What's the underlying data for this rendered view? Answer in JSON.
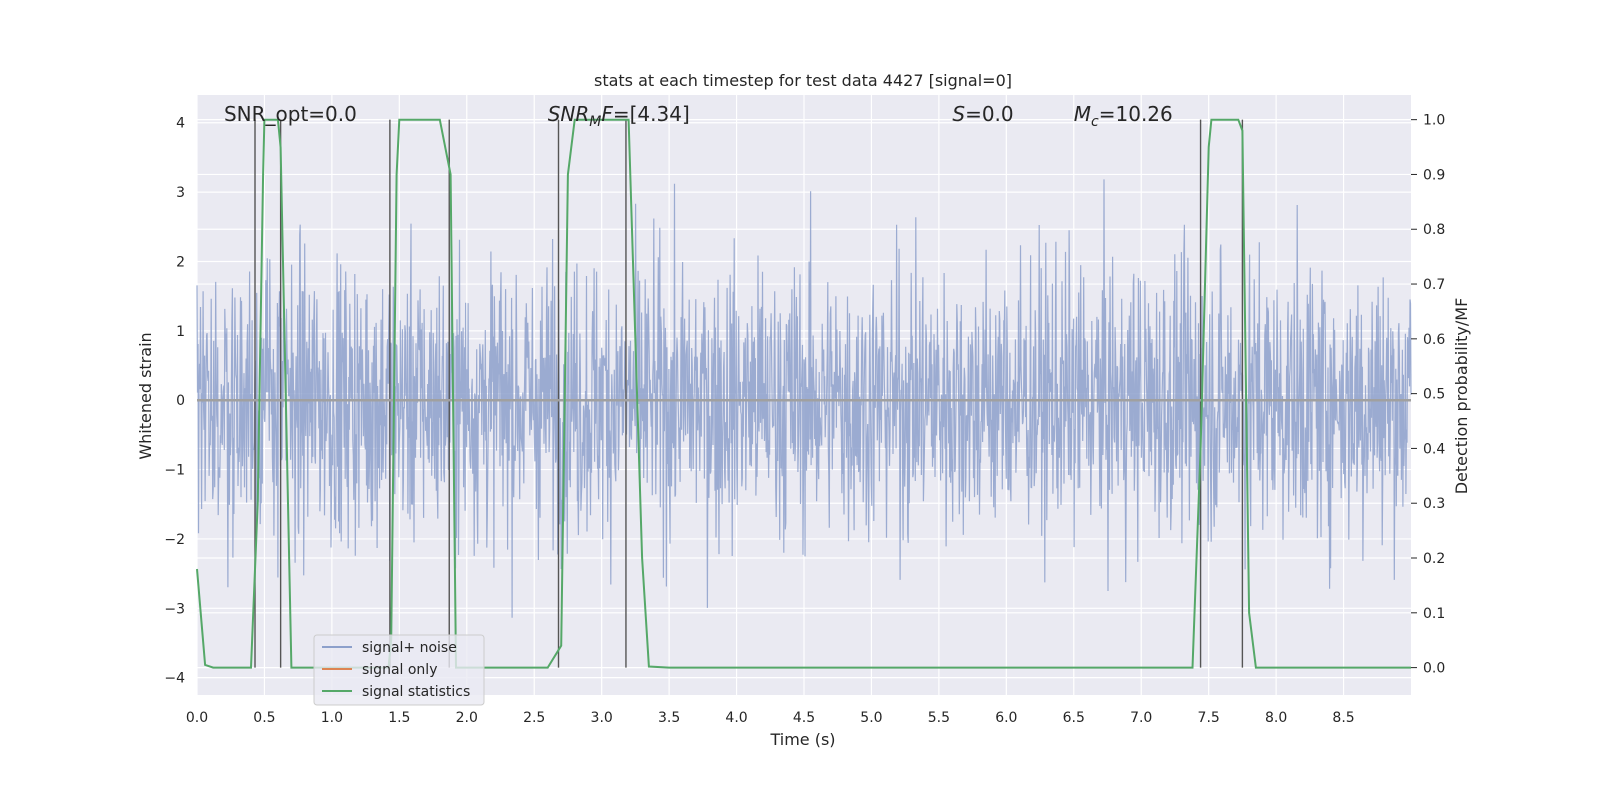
{
  "chart_data": {
    "type": "line",
    "title": "stats at each timestep for test data 4427 [signal=0]",
    "xlabel": "Time (s)",
    "ylabel": "Whitened strain",
    "y2label": "Detection probability/MF",
    "xlim": [
      0.0,
      9.0
    ],
    "ylim": [
      -4.25,
      4.4
    ],
    "y2lim": [
      -0.05,
      1.045
    ],
    "xticks": [
      "0.0",
      "0.5",
      "1.0",
      "1.5",
      "2.0",
      "2.5",
      "3.0",
      "3.5",
      "4.0",
      "4.5",
      "5.0",
      "5.5",
      "6.0",
      "6.5",
      "7.0",
      "7.5",
      "8.0",
      "8.5"
    ],
    "yticks": [
      "−4",
      "−3",
      "−2",
      "−1",
      "0",
      "1",
      "2",
      "3",
      "4"
    ],
    "y2ticks": [
      "0.0",
      "0.1",
      "0.2",
      "0.3",
      "0.4",
      "0.5",
      "0.6",
      "0.7",
      "0.8",
      "0.9",
      "1.0"
    ],
    "grid": true,
    "legend_position": "lower-left",
    "annotations": [
      {
        "text": "SNR_opt=0.0",
        "x": 0.2
      },
      {
        "text_parts": [
          {
            "t": "SNR",
            "style": "italic"
          },
          {
            "t": "M",
            "style": "italic-sub"
          },
          {
            "t": "F",
            "style": "italic"
          },
          {
            "t": "=[4.34]",
            "style": "normal"
          }
        ],
        "x": 2.6
      },
      {
        "text_parts": [
          {
            "t": "S",
            "style": "italic"
          },
          {
            "t": "=0.0",
            "style": "normal"
          }
        ],
        "x": 5.6
      },
      {
        "text_parts": [
          {
            "t": "M",
            "style": "italic"
          },
          {
            "t": "c",
            "style": "italic-sub"
          },
          {
            "t": "=10.26",
            "style": "normal"
          }
        ],
        "x": 6.5
      }
    ],
    "series": [
      {
        "name": "signal+ noise",
        "color": "#8da0cb",
        "kind": "noise",
        "amplitude": 1.0,
        "peak": 4.0
      },
      {
        "name": "signal only",
        "color": "#dd8452",
        "values": [
          0,
          0
        ]
      },
      {
        "name": "signal statistics",
        "color": "#55a868",
        "axis": "y2",
        "x": [
          0.0,
          0.06,
          0.12,
          0.4,
          0.45,
          0.49,
          0.5,
          0.6,
          0.62,
          0.7,
          1.42,
          1.44,
          1.48,
          1.5,
          1.8,
          1.88,
          1.92,
          2.6,
          2.7,
          2.75,
          2.8,
          3.2,
          3.3,
          3.35,
          3.5,
          7.38,
          7.44,
          7.5,
          7.52,
          7.72,
          7.75,
          7.8,
          7.85,
          9.0
        ],
        "y": [
          0.18,
          0.005,
          0.0,
          0.0,
          0.3,
          0.9,
          1.0,
          1.0,
          0.95,
          0.0,
          0.0,
          0.05,
          0.9,
          1.0,
          1.0,
          0.9,
          0.0,
          0.0,
          0.04,
          0.9,
          1.0,
          1.0,
          0.2,
          0.002,
          0.0,
          0.0,
          0.4,
          0.95,
          1.0,
          1.0,
          0.98,
          0.1,
          0.0,
          0.0
        ]
      }
    ],
    "vlines": [
      0.43,
      0.62,
      1.43,
      1.87,
      2.68,
      3.18,
      7.44,
      7.75
    ],
    "hlines_y": [
      0.0
    ]
  }
}
